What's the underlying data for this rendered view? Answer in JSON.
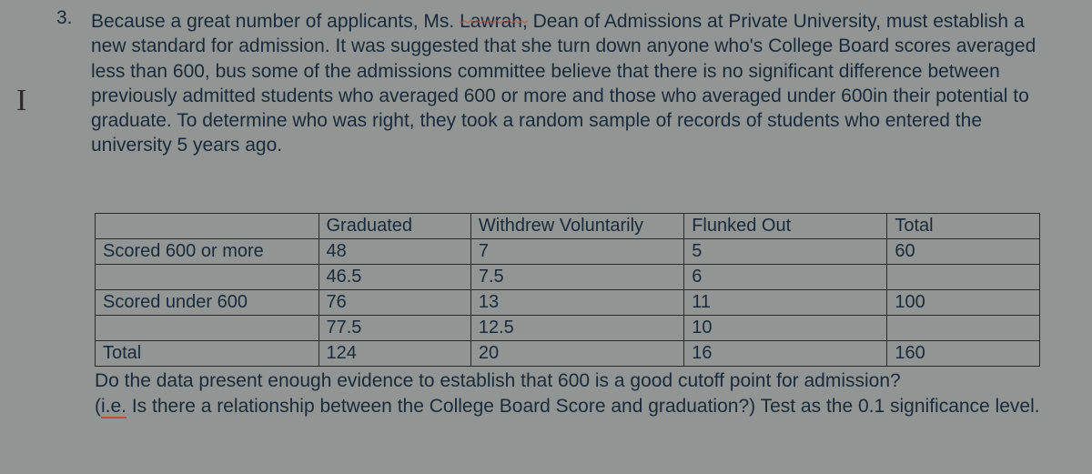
{
  "question_number": "3.",
  "cursor_glyph": "I",
  "paragraph": {
    "p1a": "Because a great number of applicants, Ms. ",
    "p1_strike": "Lawrah,",
    "p1b": " Dean of Admissions at Private University, must establish a new standard for admission.  It was suggested that she turn down anyone who's College Board scores averaged less than 600, bus some of the admissions committee believe that there is no significant difference between previously admitted students who averaged 600 or more and those who averaged under 600in their potential to graduate.  To determine who was right, they took a random sample of records of students who entered the university 5 years ago."
  },
  "table": {
    "headers": {
      "blank": "",
      "c1": "Graduated",
      "c2": "Withdrew Voluntarily",
      "c3": "Flunked Out",
      "c4": "Total"
    },
    "rows": [
      {
        "label": "Scored 600 or more",
        "c1": "48",
        "c2": "7",
        "c3": "5",
        "c4": "60"
      },
      {
        "label": "",
        "c1": "46.5",
        "c2": "7.5",
        "c3": "6",
        "c4": ""
      },
      {
        "label": "Scored under 600",
        "c1": "76",
        "c2": "13",
        "c3": "11",
        "c4": "100"
      },
      {
        "label": "",
        "c1": "77.5",
        "c2": "12.5",
        "c3": "10",
        "c4": ""
      },
      {
        "label": "Total",
        "c1": "124",
        "c2": "20",
        "c3": "16",
        "c4": "160"
      }
    ]
  },
  "tail": {
    "t1": "Do the data present enough evidence to establish that 600 is a good cutoff point for admission?",
    "t2a": "(",
    "t2_ie": "i.e.",
    "t2b": " Is there a relationship between the College Board Score and graduation?) Test as the 0.1 significance level."
  },
  "colors": {
    "background": "#919593",
    "text": "#1b2a3a",
    "border": "#2a2a2a",
    "squiggle": "#b95040"
  }
}
